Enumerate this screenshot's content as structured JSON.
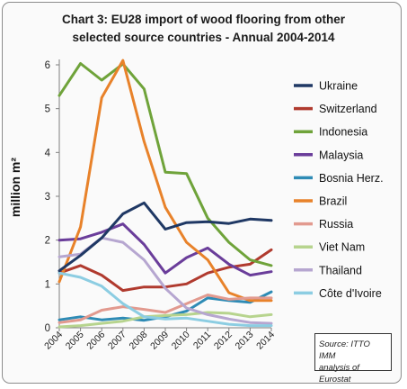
{
  "chart_data": {
    "type": "line",
    "title_lines": [
      "Chart 3: EU28 import of wood flooring from other",
      "selected source countries - Annual 2004-2014"
    ],
    "ylabel": "million m²",
    "xlabel": "",
    "categories": [
      "2004",
      "2005",
      "2006",
      "2007",
      "2008",
      "2009",
      "2010",
      "2011",
      "2012",
      "2013",
      "2014"
    ],
    "ylim": [
      0,
      6
    ],
    "yticks": [
      "0",
      "1",
      "2",
      "3",
      "4",
      "5",
      "6"
    ],
    "grid": false,
    "legend_position": "right",
    "series": [
      {
        "name": "Ukraine",
        "color": "#1f3864",
        "values": [
          1.3,
          1.65,
          2.05,
          2.6,
          2.85,
          2.25,
          2.4,
          2.42,
          2.38,
          2.48,
          2.45
        ]
      },
      {
        "name": "Switzerland",
        "color": "#b03a2e",
        "values": [
          1.25,
          1.42,
          1.2,
          0.85,
          0.93,
          0.93,
          1.0,
          1.25,
          1.38,
          1.45,
          1.78
        ]
      },
      {
        "name": "Indonesia",
        "color": "#6fa33a",
        "values": [
          5.3,
          6.03,
          5.65,
          6.02,
          5.45,
          3.55,
          3.52,
          2.5,
          1.95,
          1.55,
          1.42
        ]
      },
      {
        "name": "Malaysia",
        "color": "#6a3d9a",
        "values": [
          2.0,
          2.03,
          2.18,
          2.37,
          1.9,
          1.25,
          1.6,
          1.82,
          1.45,
          1.2,
          1.28
        ]
      },
      {
        "name": "Bosnia Herz.",
        "color": "#2e8bb5",
        "values": [
          0.18,
          0.25,
          0.18,
          0.22,
          0.17,
          0.25,
          0.38,
          0.68,
          0.62,
          0.58,
          0.82
        ]
      },
      {
        "name": "Brazil",
        "color": "#e8822a",
        "values": [
          1.05,
          2.3,
          5.25,
          6.1,
          4.25,
          2.75,
          1.95,
          1.55,
          0.8,
          0.62,
          0.62
        ]
      },
      {
        "name": "Russia",
        "color": "#e29a8f",
        "values": [
          0.12,
          0.18,
          0.4,
          0.48,
          0.42,
          0.35,
          0.55,
          0.75,
          0.65,
          0.68,
          0.68
        ]
      },
      {
        "name": "Viet Nam",
        "color": "#b7d48e",
        "values": [
          0.02,
          0.05,
          0.1,
          0.15,
          0.25,
          0.28,
          0.3,
          0.35,
          0.33,
          0.25,
          0.3
        ]
      },
      {
        "name": "Thailand",
        "color": "#b6a6d0",
        "values": [
          1.62,
          1.68,
          2.05,
          1.95,
          1.55,
          0.9,
          0.45,
          0.3,
          0.2,
          0.12,
          0.1
        ]
      },
      {
        "name": "Côte d'Ivoire",
        "color": "#8ccde2",
        "values": [
          1.25,
          1.15,
          0.95,
          0.55,
          0.25,
          0.2,
          0.22,
          0.15,
          0.08,
          0.05,
          0.05
        ]
      }
    ]
  },
  "source_lines": [
    "Source: ITTO IMM",
    "analysis of Eurostat"
  ]
}
